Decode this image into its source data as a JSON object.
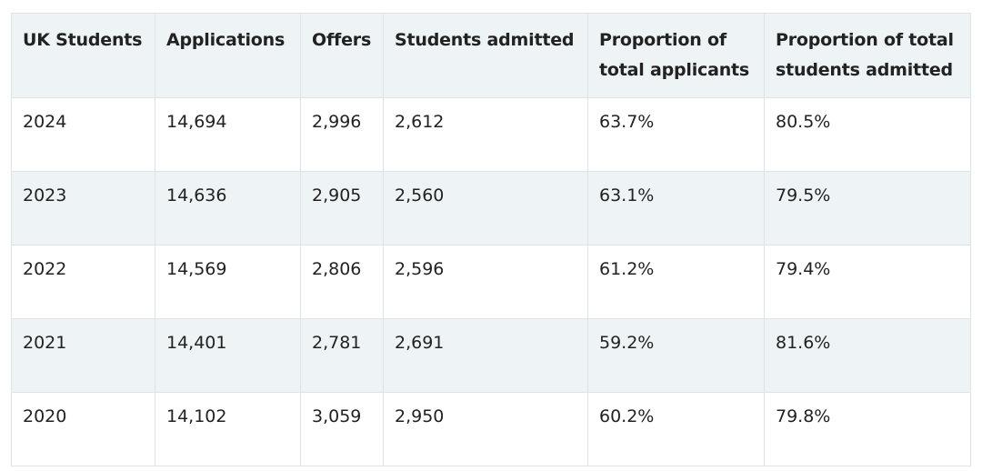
{
  "table": {
    "headers": [
      "UK Students",
      "Applications",
      "Offers",
      "Students admitted",
      "Proportion of total applicants",
      "Proportion of total students admitted"
    ],
    "rows": [
      [
        "2024",
        "14,694",
        "2,996",
        "2,612",
        "63.7%",
        "80.5%"
      ],
      [
        "2023",
        "14,636",
        "2,905",
        "2,560",
        "63.1%",
        "79.5%"
      ],
      [
        "2022",
        "14,569",
        "2,806",
        "2,596",
        "61.2%",
        "79.4%"
      ],
      [
        "2021",
        "14,401",
        "2,781",
        "2,691",
        "59.2%",
        "81.6%"
      ],
      [
        "2020",
        "14,102",
        "3,059",
        "2,950",
        "60.2%",
        "79.8%"
      ]
    ]
  },
  "colors": {
    "header_bg": "#eef3f6",
    "alt_row_bg": "#eef3f6",
    "border": "#dde3e7",
    "text": "#222222"
  }
}
